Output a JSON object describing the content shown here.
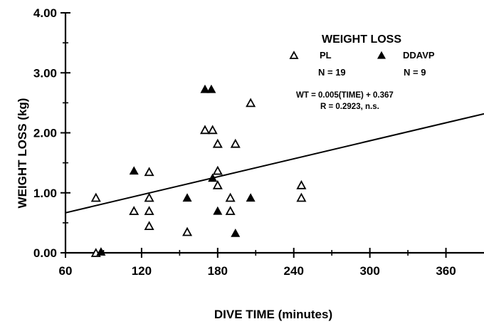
{
  "chart_data": {
    "type": "scatter",
    "xlabel": "DIVE TIME (minutes)",
    "ylabel": "WEIGHT LOSS (kg)",
    "xlim": [
      60,
      390
    ],
    "ylim": [
      0,
      4
    ],
    "x_ticks": [
      60,
      120,
      180,
      240,
      300,
      360
    ],
    "x_tick_labels": [
      "60",
      "120",
      "180",
      "240",
      "300",
      "360"
    ],
    "y_ticks": [
      0,
      1,
      2,
      3,
      4
    ],
    "y_tick_labels": [
      "0.00",
      "1.00",
      "2.00",
      "3.00",
      "4.00"
    ],
    "grid": false,
    "legend": {
      "title": "WEIGHT LOSS",
      "placement": "top-right",
      "entries": [
        {
          "label": "PL",
          "n": "N = 19",
          "marker": "open-triangle"
        },
        {
          "label": "DDAVP",
          "n": "N = 9",
          "marker": "filled-triangle"
        }
      ]
    },
    "annotations": [
      "WT = 0.005(TIME) + 0.367",
      "R = 0.2923, n.s."
    ],
    "regression": {
      "slope": 0.005,
      "intercept": 0.367
    },
    "series": [
      {
        "name": "PL",
        "marker": "open-triangle",
        "points": [
          [
            84,
            0.92
          ],
          [
            84,
            0.0
          ],
          [
            114,
            0.7
          ],
          [
            126,
            1.35
          ],
          [
            126,
            0.92
          ],
          [
            126,
            0.7
          ],
          [
            126,
            0.45
          ],
          [
            156,
            0.35
          ],
          [
            170,
            2.05
          ],
          [
            176,
            2.05
          ],
          [
            180,
            1.82
          ],
          [
            180,
            1.37
          ],
          [
            180,
            1.13
          ],
          [
            190,
            0.92
          ],
          [
            190,
            0.7
          ],
          [
            194,
            1.82
          ],
          [
            206,
            2.5
          ],
          [
            246,
            1.13
          ],
          [
            246,
            0.92
          ]
        ]
      },
      {
        "name": "DDAVP",
        "marker": "filled-triangle",
        "points": [
          [
            114,
            1.37
          ],
          [
            156,
            0.92
          ],
          [
            170,
            2.73
          ],
          [
            175,
            2.73
          ],
          [
            176,
            1.25
          ],
          [
            180,
            0.7
          ],
          [
            194,
            0.33
          ],
          [
            206,
            0.92
          ],
          [
            88,
            0.02
          ]
        ]
      }
    ]
  }
}
